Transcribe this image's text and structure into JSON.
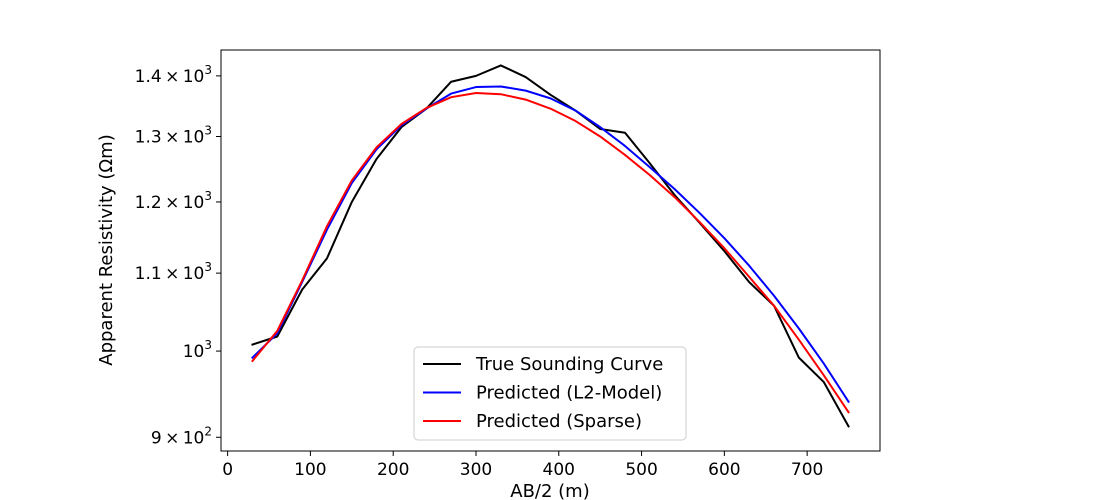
{
  "chart_data": {
    "type": "line",
    "xlabel": "AB/2 (m)",
    "ylabel": "Apparent Resistivity (Ωm)",
    "xlim": [
      -8,
      788
    ],
    "ylim": [
      885,
      1445
    ],
    "y_scale": "log",
    "grid": false,
    "legend_position": "bottom-center",
    "x_ticks": [
      0,
      100,
      200,
      300,
      400,
      500,
      600,
      700
    ],
    "x_tick_labels": [
      "0",
      "100",
      "200",
      "300",
      "400",
      "500",
      "600",
      "700"
    ],
    "y_ticks": [
      900,
      1000,
      1100,
      1200,
      1300,
      1400
    ],
    "y_tick_labels": [
      {
        "mantissa": "9",
        "exp": "2"
      },
      {
        "mantissa": "",
        "exp": "3"
      },
      {
        "mantissa": "1.1",
        "exp": "3"
      },
      {
        "mantissa": "1.2",
        "exp": "3"
      },
      {
        "mantissa": "1.3",
        "exp": "3"
      },
      {
        "mantissa": "1.4",
        "exp": "3"
      }
    ],
    "x": [
      30,
      60,
      90,
      120,
      150,
      180,
      210,
      240,
      270,
      300,
      330,
      360,
      390,
      420,
      450,
      480,
      510,
      540,
      570,
      600,
      630,
      660,
      690,
      720,
      750
    ],
    "series": [
      {
        "name": "True Sounding Curve",
        "color": "#000000",
        "values": [
          1008,
          1018,
          1078,
          1120,
          1200,
          1265,
          1315,
          1345,
          1390,
          1400,
          1418,
          1398,
          1368,
          1342,
          1312,
          1306,
          1258,
          1210,
          1170,
          1130,
          1088,
          1057,
          992,
          963,
          912
        ]
      },
      {
        "name": "Predicted (L2-Model)",
        "color": "#0000ff",
        "values": [
          992,
          1022,
          1088,
          1160,
          1228,
          1280,
          1318,
          1345,
          1370,
          1381,
          1382,
          1375,
          1362,
          1342,
          1315,
          1285,
          1252,
          1219,
          1184,
          1148,
          1110,
          1070,
          1028,
          985,
          940
        ]
      },
      {
        "name": "Predicted (Sparse)",
        "color": "#ff0000",
        "values": [
          988,
          1025,
          1090,
          1165,
          1232,
          1283,
          1320,
          1346,
          1364,
          1371,
          1369,
          1360,
          1345,
          1325,
          1300,
          1271,
          1240,
          1207,
          1171,
          1134,
          1095,
          1057,
          1014,
          971,
          928
        ]
      }
    ]
  }
}
